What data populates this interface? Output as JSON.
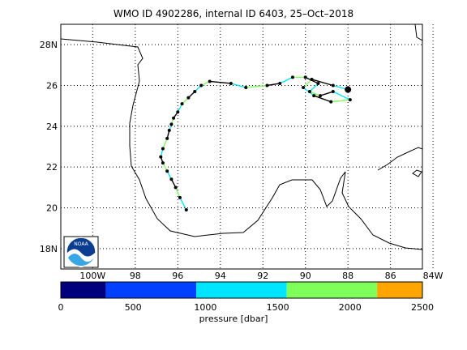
{
  "title": "WMO ID 4902286, internal ID 6403, 25–Oct–2018",
  "map": {
    "lon_range": [
      -101.5,
      -84.5
    ],
    "lat_range": [
      17,
      29
    ],
    "lat_ticks": [
      {
        "value": 28,
        "label": "28N"
      },
      {
        "value": 26,
        "label": "26"
      },
      {
        "value": 24,
        "label": "24"
      },
      {
        "value": 22,
        "label": "22"
      },
      {
        "value": 20,
        "label": "20"
      },
      {
        "value": 18,
        "label": "18N"
      }
    ],
    "lon_ticks": [
      {
        "value": -100,
        "label": "100W"
      },
      {
        "value": -98,
        "label": "98"
      },
      {
        "value": -96,
        "label": "96"
      },
      {
        "value": -94,
        "label": "94"
      },
      {
        "value": -92,
        "label": "92"
      },
      {
        "value": -90,
        "label": "90"
      },
      {
        "value": -88,
        "label": "88"
      },
      {
        "value": -86,
        "label": "86"
      },
      {
        "value": -84,
        "label": "84W"
      }
    ],
    "grid": "dotted",
    "float_track": [
      [
        -95.6,
        19.9
      ],
      [
        -95.9,
        20.5
      ],
      [
        -96.1,
        21.0
      ],
      [
        -96.3,
        21.4
      ],
      [
        -96.5,
        21.8
      ],
      [
        -96.7,
        22.2
      ],
      [
        -96.8,
        22.5
      ],
      [
        -96.7,
        22.9
      ],
      [
        -96.5,
        23.4
      ],
      [
        -96.4,
        23.8
      ],
      [
        -96.3,
        24.1
      ],
      [
        -96.2,
        24.4
      ],
      [
        -96.0,
        24.7
      ],
      [
        -95.8,
        25.1
      ],
      [
        -95.5,
        25.4
      ],
      [
        -95.2,
        25.7
      ],
      [
        -94.9,
        26.0
      ],
      [
        -94.5,
        26.2
      ],
      [
        -93.5,
        26.1
      ],
      [
        -92.8,
        25.9
      ],
      [
        -91.8,
        26.0
      ],
      [
        -91.2,
        26.1
      ],
      [
        -90.6,
        26.4
      ],
      [
        -90.0,
        26.4
      ],
      [
        -89.4,
        26.1
      ],
      [
        -89.8,
        25.7
      ],
      [
        -89.3,
        25.5
      ],
      [
        -88.7,
        25.7
      ],
      [
        -87.9,
        25.3
      ],
      [
        -88.8,
        25.2
      ],
      [
        -89.6,
        25.5
      ],
      [
        -90.1,
        25.9
      ],
      [
        -89.7,
        26.3
      ],
      [
        -88.7,
        26.0
      ],
      [
        -88.0,
        25.8
      ]
    ],
    "last_position": [
      -88.0,
      25.8
    ],
    "track_color": "#000000",
    "segment_colors": [
      "#00e5ff",
      "#7fff5a",
      "#000000"
    ]
  },
  "noaa_logo": {
    "text": "NOAA"
  },
  "colorbar": {
    "min": 0,
    "max": 2500,
    "ticks": [
      {
        "value": 0,
        "label": "0"
      },
      {
        "value": 500,
        "label": "500"
      },
      {
        "value": 1000,
        "label": "1000"
      },
      {
        "value": 1500,
        "label": "1500"
      },
      {
        "value": 2000,
        "label": "2000"
      },
      {
        "value": 2500,
        "label": "2500"
      }
    ],
    "bins": [
      {
        "from": 0,
        "to": 312,
        "color": "#00007f"
      },
      {
        "from": 312,
        "to": 937,
        "color": "#0040ff"
      },
      {
        "from": 937,
        "to": 1562,
        "color": "#00e5ff"
      },
      {
        "from": 1562,
        "to": 2187,
        "color": "#7fff5a"
      },
      {
        "from": 2187,
        "to": 2500,
        "color": "#ffa500"
      }
    ],
    "label": "pressure [dbar]"
  }
}
